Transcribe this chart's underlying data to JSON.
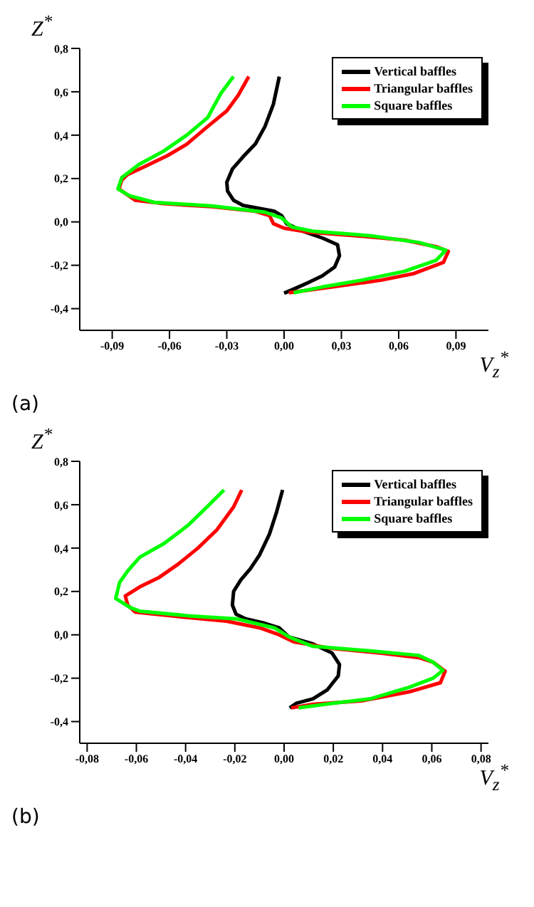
{
  "chart_data": [
    {
      "type": "line",
      "xlabel": "V$_{z}$$^{*}$",
      "ylabel": "Z$^{*}$",
      "annotations": [
        "(a)"
      ],
      "legend": "top right",
      "grid": false,
      "marker": "none",
      "line_style": "solid",
      "xlim": [
        -0.107,
        0.107
      ],
      "ylim": [
        -0.5,
        0.8
      ],
      "xticks": [
        {
          "value": -0.09,
          "label": "-0,09"
        },
        {
          "value": -0.06,
          "label": "-0,06"
        },
        {
          "value": -0.03,
          "label": "-0,03"
        },
        {
          "value": 0,
          "label": "0,00"
        },
        {
          "value": 0.03,
          "label": "0,03"
        },
        {
          "value": 0.06,
          "label": "0,06"
        },
        {
          "value": 0.09,
          "label": "0,09"
        }
      ],
      "yticks": [
        {
          "value": -0.4,
          "label": "-0,4"
        },
        {
          "value": -0.2,
          "label": "-0,2"
        },
        {
          "value": 0,
          "label": "0,0"
        },
        {
          "value": 0.2,
          "label": "0,2"
        },
        {
          "value": 0.4,
          "label": "0,4"
        },
        {
          "value": 0.6,
          "label": "0,6"
        },
        {
          "value": 0.8,
          "label": "0,8"
        }
      ],
      "series": [
        {
          "name": "Vertical baffles",
          "color": "#000000",
          "x": [
            -0.0025,
            -0.0056,
            -0.01,
            -0.015,
            -0.0215,
            -0.027,
            -0.03,
            -0.0296,
            -0.0265,
            -0.0215,
            -0.014,
            -0.005,
            -0.0013,
            0.0013,
            0.01,
            0.02,
            0.028,
            0.029,
            0.0265,
            0.02,
            0.0126,
            0.005,
            0.0
          ],
          "values": [
            0.67,
            0.543,
            0.44,
            0.36,
            0.3,
            0.245,
            0.183,
            0.142,
            0.1,
            0.076,
            0.064,
            0.049,
            0.029,
            -0.008,
            -0.043,
            -0.074,
            -0.105,
            -0.156,
            -0.208,
            -0.249,
            -0.28,
            -0.31,
            -0.329
          ]
        },
        {
          "name": "Triangular baffles",
          "color": "#ff0000",
          "x": [
            -0.0185,
            -0.024,
            -0.03,
            -0.04,
            -0.051,
            -0.061,
            -0.073,
            -0.082,
            -0.085,
            -0.0865,
            -0.078,
            -0.063,
            -0.038,
            -0.015,
            -0.0076,
            -0.0056,
            0.0,
            0.0126,
            0.038,
            0.063,
            0.08,
            0.086,
            0.0834,
            0.068,
            0.0506,
            0.0253,
            0.0025
          ],
          "values": [
            0.67,
            0.584,
            0.512,
            0.44,
            0.358,
            0.306,
            0.255,
            0.218,
            0.193,
            0.152,
            0.1,
            0.084,
            0.07,
            0.049,
            0.029,
            -0.008,
            -0.029,
            -0.047,
            -0.064,
            -0.084,
            -0.115,
            -0.136,
            -0.187,
            -0.238,
            -0.269,
            -0.3,
            -0.327
          ]
        },
        {
          "name": "Square baffles",
          "color": "#00ff00",
          "x": [
            -0.0265,
            -0.033,
            -0.04,
            -0.051,
            -0.063,
            -0.076,
            -0.085,
            -0.087,
            -0.081,
            -0.068,
            -0.038,
            -0.01,
            -0.0013,
            0.004,
            0.015,
            0.0455,
            0.0708,
            0.0847,
            0.0796,
            0.063,
            0.0405,
            0.02,
            0.005
          ],
          "values": [
            0.67,
            0.594,
            0.481,
            0.4,
            0.327,
            0.265,
            0.204,
            0.152,
            0.121,
            0.09,
            0.074,
            0.045,
            0.018,
            -0.023,
            -0.043,
            -0.064,
            -0.095,
            -0.13,
            -0.177,
            -0.228,
            -0.269,
            -0.3,
            -0.327
          ]
        }
      ]
    },
    {
      "type": "line",
      "xlabel": "V$_{z}$$^{*}$",
      "ylabel": "Z$^{*}$",
      "annotations": [
        "(b)"
      ],
      "legend": "top right",
      "grid": false,
      "marker": "none",
      "line_style": "solid",
      "xlim": [
        -0.083,
        0.083
      ],
      "ylim": [
        -0.5,
        0.8
      ],
      "xticks": [
        {
          "value": -0.08,
          "label": "-0,08"
        },
        {
          "value": -0.06,
          "label": "-0,06"
        },
        {
          "value": -0.04,
          "label": "-0,04"
        },
        {
          "value": -0.02,
          "label": "-0,02"
        },
        {
          "value": 0,
          "label": "0,00"
        },
        {
          "value": 0.02,
          "label": "0,02"
        },
        {
          "value": 0.04,
          "label": "0,04"
        },
        {
          "value": 0.06,
          "label": "0,06"
        },
        {
          "value": 0.08,
          "label": "0,08"
        }
      ],
      "yticks": [
        {
          "value": -0.4,
          "label": "-0,4"
        },
        {
          "value": -0.2,
          "label": "-0,2"
        },
        {
          "value": 0,
          "label": "0,0"
        },
        {
          "value": 0.2,
          "label": "0,2"
        },
        {
          "value": 0.4,
          "label": "0,4"
        },
        {
          "value": 0.6,
          "label": "0,6"
        },
        {
          "value": 0.8,
          "label": "0,8"
        }
      ],
      "series": [
        {
          "name": "Vertical baffles",
          "color": "#000000",
          "x": [
            -0.0006,
            -0.003,
            -0.006,
            -0.01,
            -0.0137,
            -0.0176,
            -0.0205,
            -0.021,
            -0.0195,
            -0.0156,
            -0.0078,
            -0.002,
            0.002,
            0.0117,
            0.0195,
            0.0225,
            0.022,
            0.0176,
            0.0117,
            0.0049,
            0.0023
          ],
          "values": [
            0.668,
            0.568,
            0.463,
            0.368,
            0.305,
            0.253,
            0.2,
            0.137,
            0.095,
            0.074,
            0.053,
            0.032,
            -0.01,
            -0.042,
            -0.084,
            -0.137,
            -0.19,
            -0.253,
            -0.295,
            -0.316,
            -0.337
          ]
        },
        {
          "name": "Triangular baffles",
          "color": "#ff0000",
          "x": [
            -0.0172,
            -0.0205,
            -0.0273,
            -0.035,
            -0.043,
            -0.051,
            -0.0586,
            -0.0645,
            -0.0635,
            -0.0605,
            -0.043,
            -0.0234,
            -0.0098,
            -0.002,
            0.0039,
            0.0195,
            0.039,
            0.0547,
            0.0605,
            0.0654,
            0.0635,
            0.0508,
            0.0313,
            0.0117,
            0.0029
          ],
          "values": [
            0.668,
            0.59,
            0.484,
            0.4,
            0.326,
            0.263,
            0.221,
            0.179,
            0.137,
            0.105,
            0.084,
            0.063,
            0.032,
            0.0,
            -0.032,
            -0.063,
            -0.084,
            -0.105,
            -0.126,
            -0.168,
            -0.221,
            -0.263,
            -0.305,
            -0.32,
            -0.337
          ]
        },
        {
          "name": "Square baffles",
          "color": "#00ff00",
          "x": [
            -0.0244,
            -0.0313,
            -0.039,
            -0.0488,
            -0.0586,
            -0.0635,
            -0.0668,
            -0.0684,
            -0.0625,
            -0.0586,
            -0.039,
            -0.0195,
            -0.0039,
            0.002,
            0.0117,
            0.035,
            0.0547,
            0.0605,
            0.0645,
            0.0605,
            0.0508,
            0.035,
            0.0195,
            0.0059
          ],
          "values": [
            0.668,
            0.59,
            0.505,
            0.421,
            0.358,
            0.295,
            0.242,
            0.168,
            0.126,
            0.109,
            0.088,
            0.074,
            0.032,
            -0.01,
            -0.053,
            -0.074,
            -0.095,
            -0.126,
            -0.164,
            -0.2,
            -0.242,
            -0.295,
            -0.316,
            -0.337
          ]
        }
      ]
    }
  ]
}
